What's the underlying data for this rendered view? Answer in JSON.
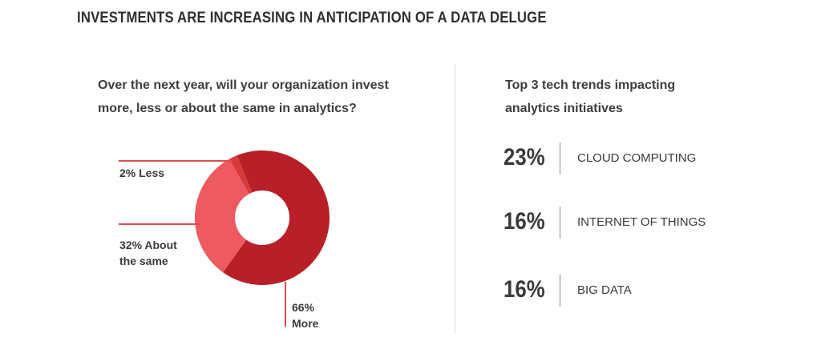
{
  "title": "INVESTMENTS ARE INCREASING IN ANTICIPATION OF A DATA DELUGE",
  "question": {
    "line1": "Over the next year, will your organization invest",
    "line2": "more, less or about the same in analytics?"
  },
  "trends": {
    "heading_line1": "Top 3 tech trends impacting",
    "heading_line2": "analytics initiatives",
    "items": [
      {
        "pct": "23%",
        "label": "CLOUD COMPUTING"
      },
      {
        "pct": "16%",
        "label": "INTERNET OF THINGS"
      },
      {
        "pct": "16%",
        "label": "BIG DATA"
      }
    ]
  },
  "chart_data": {
    "type": "pie",
    "donut": true,
    "slices": [
      {
        "name": "Less",
        "value": 2,
        "label_lines": [
          "2% Less"
        ],
        "color": "#d83a3c"
      },
      {
        "name": "About the same",
        "value": 32,
        "label_lines": [
          "32% About",
          "the same"
        ],
        "color": "#ee5a5f"
      },
      {
        "name": "More",
        "value": 66,
        "label_lines": [
          "66%",
          "More"
        ],
        "color": "#b81f26"
      }
    ],
    "leader_color": "#e04a4e"
  }
}
